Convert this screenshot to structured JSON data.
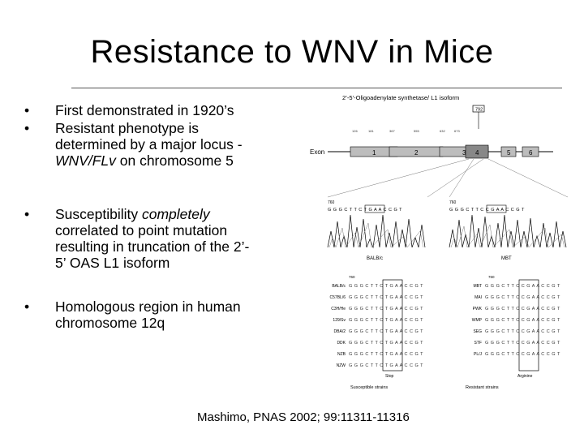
{
  "slide": {
    "title": "Resistance to WNV in Mice",
    "bullets": [
      {
        "line1": "First demonstrated in 1920’s"
      },
      {
        "line1": "Resistant phenotype is",
        "line2": "determined by a major locus -",
        "line3_italic": "WNV/FLv",
        "line3_rest": " on chromosome 5"
      },
      {
        "line1_a": "Susceptibility ",
        "line1_italic": "completely",
        "line2": "correlated to point mutation",
        "line3": "resulting in truncation of the 2’-",
        "line4": "5’ OAS L1 isoform"
      },
      {
        "line1": "Homologous region in human",
        "line2": "chromosome 12q"
      }
    ],
    "bullet_symbol": "•",
    "citation": "Mashimo, PNAS 2002; 99:11311-11316"
  },
  "figure": {
    "title": "2’-5’-Oligoadenylate synthetase/ L1 isoform",
    "marker": "792",
    "exon_label": "Exon",
    "exons": [
      "1",
      "2",
      "3",
      "4",
      "5",
      "6"
    ],
    "exon_coords": [
      "126",
      "181",
      "367",
      "555",
      "632",
      "673",
      "",
      "",
      "",
      "",
      ""
    ],
    "chrom_left_pos": "760",
    "chrom_right_pos": "760",
    "sequence_left": "G G G C T T C T G A A C C G T",
    "sequence_right": "G G G C T T C C G A A C C G T",
    "chrom_left_label": "BALB/c",
    "chrom_right_label": "MBT",
    "align_pos_left": "760",
    "align_pos_right": "760",
    "susceptible_strains": [
      "BALB/c",
      "C57BL/6",
      "C3H/He",
      "129/Sv",
      "DBA/2",
      "DDK",
      "NZB",
      "NZW"
    ],
    "resistant_strains": [
      "MBT",
      "MAI",
      "PWK",
      "WMP",
      "SEG",
      "STF",
      "PL/J"
    ],
    "seq_susceptible": "G G G C T T C T G A A C C G T",
    "seq_resistant": "G G G C T T C C G A A C C G T",
    "codon_left": "Stop",
    "codon_right": "Arginine",
    "group_left": "Susceptible strains",
    "group_right": "Resistant strains"
  }
}
